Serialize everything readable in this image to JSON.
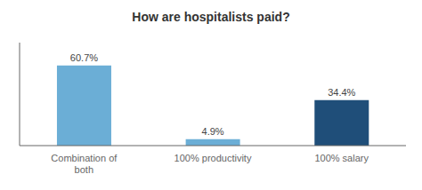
{
  "chart_data": {
    "type": "bar",
    "title": "How are hospitalists paid?",
    "categories": [
      "Combination of\nboth",
      "100% productivity",
      "100% salary"
    ],
    "values": [
      60.7,
      4.9,
      34.4
    ],
    "value_labels": [
      "60.7%",
      "4.9%",
      "34.4%"
    ],
    "data_labels": true,
    "colors": [
      "#6BAED6",
      "#6BAED6",
      "#1F4E79"
    ],
    "ylim": [
      0,
      78
    ],
    "tick_labels": "x",
    "grid": false
  }
}
